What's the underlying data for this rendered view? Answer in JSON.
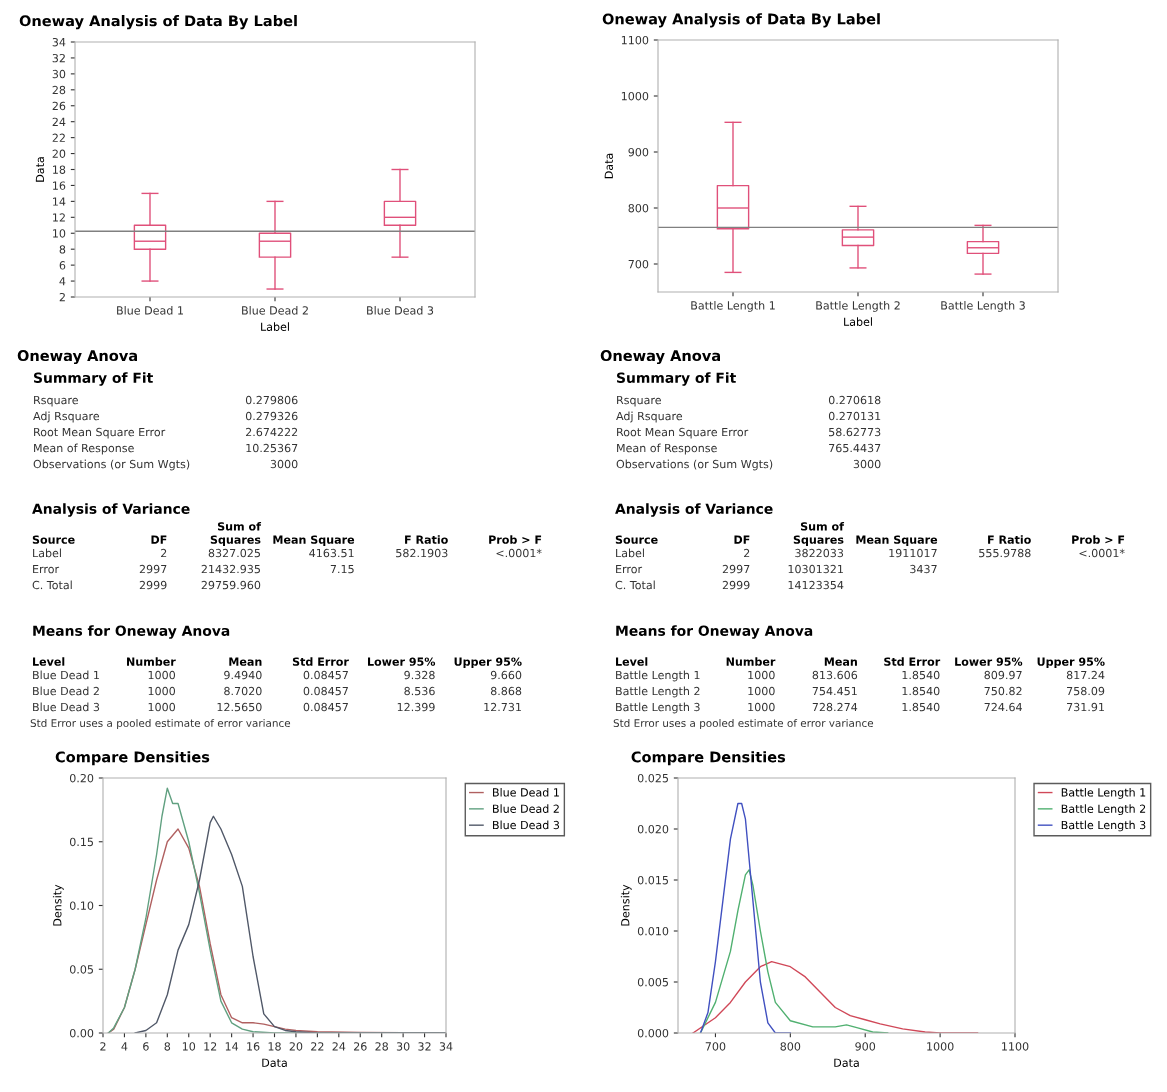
{
  "chart_data": [
    {
      "type": "box",
      "title": "Oneway Analysis of Data By Label",
      "xlabel": "Label",
      "ylabel": "Data",
      "categories": [
        "Blue Dead 1",
        "Blue Dead 2",
        "Blue Dead 3"
      ],
      "color": "#e0507a",
      "boxes": [
        {
          "low": 4,
          "q1": 8,
          "median": 9,
          "q3": 11,
          "high": 15
        },
        {
          "low": 3,
          "q1": 7,
          "median": 9,
          "q3": 10,
          "high": 14
        },
        {
          "low": 7,
          "q1": 11,
          "median": 12,
          "q3": 14,
          "high": 18
        }
      ],
      "ylim": [
        2,
        34
      ],
      "yticks": [
        2,
        4,
        6,
        8,
        10,
        12,
        14,
        16,
        18,
        20,
        22,
        24,
        26,
        28,
        30,
        32,
        34
      ],
      "ref_lines": [
        {
          "axis": "y",
          "value": 10.25,
          "color": "#808080"
        }
      ]
    },
    {
      "type": "box",
      "title": "Oneway Analysis of Data By Label",
      "xlabel": "Label",
      "ylabel": "Data",
      "categories": [
        "Battle Length 1",
        "Battle Length 2",
        "Battle Length 3"
      ],
      "color": "#e0507a",
      "boxes": [
        {
          "low": 685,
          "q1": 763,
          "median": 800,
          "q3": 840,
          "high": 953
        },
        {
          "low": 693,
          "q1": 733,
          "median": 748,
          "q3": 761,
          "high": 803
        },
        {
          "low": 682,
          "q1": 719,
          "median": 729,
          "q3": 740,
          "high": 769
        }
      ],
      "ylim": [
        650,
        1100
      ],
      "yticks": [
        700,
        800,
        900,
        1000,
        1100
      ],
      "ref_lines": [
        {
          "axis": "y",
          "value": 765.44,
          "color": "#808080"
        }
      ]
    },
    {
      "type": "other",
      "title": "Oneway Anova",
      "subtitle": "Summary of Fit",
      "cell_labels": [
        [
          "Rsquare",
          "0.279806"
        ],
        [
          "Adj Rsquare",
          "0.279326"
        ],
        [
          "Root Mean Square Error",
          "2.674222"
        ],
        [
          "Mean of Response",
          "10.25367"
        ],
        [
          "Observations (or Sum Wgts)",
          "3000"
        ]
      ]
    },
    {
      "type": "other",
      "title": "Oneway Anova",
      "subtitle": "Summary of Fit",
      "cell_labels": [
        [
          "Rsquare",
          "0.270618"
        ],
        [
          "Adj Rsquare",
          "0.270131"
        ],
        [
          "Root Mean Square Error",
          "58.62773"
        ],
        [
          "Mean of Response",
          "765.4437"
        ],
        [
          "Observations (or Sum Wgts)",
          "3000"
        ]
      ]
    },
    {
      "type": "other",
      "title": "Analysis of Variance",
      "categories": [
        "Source",
        "DF",
        "Sum of\nSquares",
        "Mean Square",
        "F Ratio",
        "Prob > F"
      ],
      "cell_labels": [
        [
          "Label",
          "2",
          "8327.025",
          "4163.51",
          "582.1903",
          "<.0001*"
        ],
        [
          "Error",
          "2997",
          "21432.935",
          "7.15",
          null,
          null
        ],
        [
          "C. Total",
          "2999",
          "29759.960",
          null,
          null,
          null
        ]
      ]
    },
    {
      "type": "other",
      "title": "Analysis of Variance",
      "categories": [
        "Source",
        "DF",
        "Sum of\nSquares",
        "Mean Square",
        "F Ratio",
        "Prob > F"
      ],
      "cell_labels": [
        [
          "Label",
          "2",
          "3822033",
          "1911017",
          "555.9788",
          "<.0001*"
        ],
        [
          "Error",
          "2997",
          "10301321",
          "3437",
          null,
          null
        ],
        [
          "C. Total",
          "2999",
          "14123354",
          null,
          null,
          null
        ]
      ]
    },
    {
      "type": "other",
      "title": "Means for Oneway Anova",
      "categories": [
        "Level",
        "Number",
        "Mean",
        "Std Error",
        "Lower 95%",
        "Upper 95%"
      ],
      "cell_labels": [
        [
          "Blue Dead 1",
          "1000",
          "9.4940",
          "0.08457",
          "9.328",
          "9.660"
        ],
        [
          "Blue Dead 2",
          "1000",
          "8.7020",
          "0.08457",
          "8.536",
          "8.868"
        ],
        [
          "Blue Dead 3",
          "1000",
          "12.5650",
          "0.08457",
          "12.399",
          "12.731"
        ]
      ],
      "annotations": [
        "Std Error uses a pooled estimate of error variance"
      ]
    },
    {
      "type": "other",
      "title": "Means for Oneway Anova",
      "categories": [
        "Level",
        "Number",
        "Mean",
        "Std Error",
        "Lower 95%",
        "Upper 95%"
      ],
      "cell_labels": [
        [
          "Battle Length 1",
          "1000",
          "813.606",
          "1.8540",
          "809.97",
          "817.24"
        ],
        [
          "Battle Length 2",
          "1000",
          "754.451",
          "1.8540",
          "750.82",
          "758.09"
        ],
        [
          "Battle Length 3",
          "1000",
          "728.274",
          "1.8540",
          "724.64",
          "731.91"
        ]
      ],
      "annotations": [
        "Std Error uses a pooled estimate of error variance"
      ]
    },
    {
      "type": "line",
      "title": "Compare Densities",
      "xlabel": "Data",
      "ylabel": "Density",
      "legend": "top right",
      "xlim": [
        2,
        34
      ],
      "xticks": [
        2,
        4,
        6,
        8,
        10,
        12,
        14,
        16,
        18,
        20,
        22,
        24,
        26,
        28,
        30,
        32,
        34
      ],
      "ylim": [
        0,
        0.2
      ],
      "yticks": [
        {
          "value": 0,
          "label": "0.00"
        },
        {
          "value": 0.05,
          "label": "0.05"
        },
        {
          "value": 0.1,
          "label": "0.10"
        },
        {
          "value": 0.15,
          "label": "0.15"
        },
        {
          "value": 0.2,
          "label": "0.20"
        }
      ],
      "series": [
        {
          "name": "Blue Dead 1",
          "color": "#b06060",
          "x": [
            2.5,
            3,
            4,
            5,
            6,
            7,
            8,
            9,
            10,
            11,
            12,
            13,
            14,
            15,
            16,
            17,
            18,
            19,
            20,
            22,
            26,
            34
          ],
          "values": [
            0,
            0.003,
            0.02,
            0.05,
            0.085,
            0.12,
            0.15,
            0.16,
            0.145,
            0.115,
            0.07,
            0.03,
            0.012,
            0.008,
            0.008,
            0.007,
            0.005,
            0.003,
            0.002,
            0.001,
            0.0005,
            0
          ]
        },
        {
          "name": "Blue Dead 2",
          "color": "#60a080",
          "x": [
            2.5,
            3,
            4,
            5,
            6,
            7,
            7.5,
            8,
            8.5,
            9,
            10,
            11,
            12,
            13,
            14,
            15,
            16,
            18,
            34
          ],
          "values": [
            0,
            0.004,
            0.02,
            0.05,
            0.09,
            0.14,
            0.17,
            0.192,
            0.18,
            0.18,
            0.15,
            0.11,
            0.065,
            0.025,
            0.008,
            0.003,
            0.001,
            0,
            0
          ]
        },
        {
          "name": "Blue Dead 3",
          "color": "#505868",
          "x": [
            5,
            6,
            7,
            8,
            9,
            10,
            11,
            12,
            12.3,
            13,
            14,
            15,
            16,
            17,
            18,
            19,
            20,
            22,
            34
          ],
          "values": [
            0,
            0.002,
            0.008,
            0.03,
            0.065,
            0.085,
            0.12,
            0.165,
            0.17,
            0.16,
            0.14,
            0.115,
            0.06,
            0.015,
            0.005,
            0.002,
            0.001,
            0,
            0
          ]
        }
      ]
    },
    {
      "type": "line",
      "title": "Compare Densities",
      "xlabel": "Data",
      "ylabel": "Density",
      "legend": "top right",
      "xlim": [
        650,
        1100
      ],
      "xticks": [
        700,
        800,
        900,
        1000,
        1100
      ],
      "ylim": [
        0,
        0.025
      ],
      "yticks": [
        {
          "value": 0,
          "label": "0.000"
        },
        {
          "value": 0.005,
          "label": "0.005"
        },
        {
          "value": 0.01,
          "label": "0.010"
        },
        {
          "value": 0.015,
          "label": "0.015"
        },
        {
          "value": 0.02,
          "label": "0.020"
        },
        {
          "value": 0.025,
          "label": "0.025"
        }
      ],
      "series": [
        {
          "name": "Battle Length 1",
          "color": "#d04858",
          "x": [
            670,
            700,
            720,
            740,
            760,
            775,
            800,
            820,
            840,
            860,
            880,
            900,
            920,
            950,
            980,
            1000,
            1050
          ],
          "values": [
            0,
            0.0015,
            0.003,
            0.005,
            0.0065,
            0.007,
            0.0065,
            0.0055,
            0.004,
            0.0025,
            0.0017,
            0.0013,
            0.0009,
            0.0004,
            0.0001,
            0,
            0
          ]
        },
        {
          "name": "Battle Length 2",
          "color": "#50b070",
          "x": [
            680,
            700,
            720,
            730,
            740,
            745,
            750,
            760,
            770,
            780,
            800,
            830,
            860,
            875,
            890,
            910,
            930
          ],
          "values": [
            0,
            0.003,
            0.008,
            0.012,
            0.0155,
            0.016,
            0.0145,
            0.01,
            0.006,
            0.003,
            0.0012,
            0.0006,
            0.0006,
            0.0008,
            0.0005,
            0.0001,
            0
          ]
        },
        {
          "name": "Battle Length 3",
          "color": "#4050c0",
          "x": [
            680,
            690,
            700,
            710,
            720,
            730,
            735,
            740,
            750,
            760,
            770,
            780,
            800
          ],
          "values": [
            0,
            0.002,
            0.007,
            0.013,
            0.019,
            0.0225,
            0.0225,
            0.021,
            0.013,
            0.005,
            0.001,
            0,
            0
          ]
        }
      ]
    }
  ]
}
